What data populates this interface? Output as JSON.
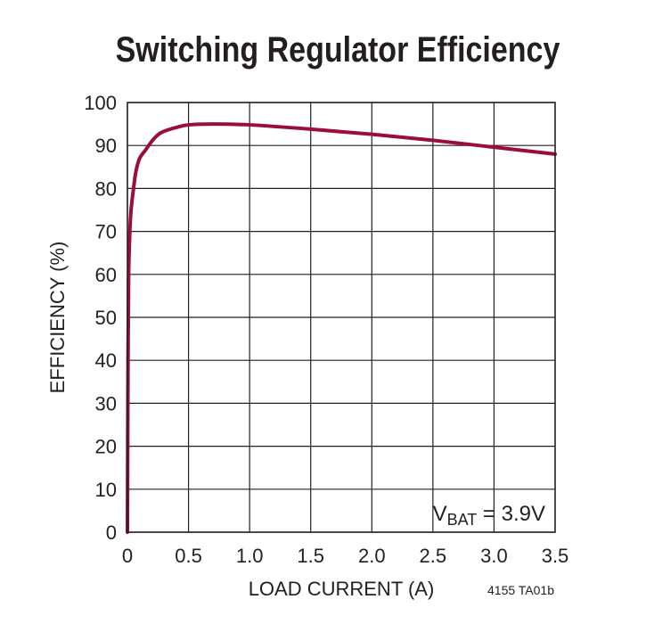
{
  "chart_data": {
    "type": "line",
    "title": "Switching Regulator Efficiency",
    "xlabel": "LOAD CURRENT (A)",
    "ylabel": "EFFICIENCY (%)",
    "xlim": [
      0,
      3.5
    ],
    "ylim": [
      0,
      100
    ],
    "x_ticks": [
      "0",
      "0.5",
      "1.0",
      "1.5",
      "2.0",
      "2.5",
      "3.0",
      "3.5"
    ],
    "y_ticks": [
      "0",
      "10",
      "20",
      "30",
      "40",
      "50",
      "60",
      "70",
      "80",
      "90",
      "100"
    ],
    "grid": true,
    "annotation": {
      "prefix": "V",
      "subscript": "BAT",
      "suffix": " = 3.9V"
    },
    "figure_code": "4155 TA01b",
    "line_color": "#9b0e3a",
    "series": [
      {
        "x": [
          0,
          0.005,
          0.01,
          0.02,
          0.03,
          0.05,
          0.07,
          0.1,
          0.15,
          0.2,
          0.25,
          0.3,
          0.4,
          0.5,
          0.7,
          1.0,
          1.5,
          2.0,
          2.5,
          3.0,
          3.5
        ],
        "y": [
          0,
          40,
          60,
          70,
          75,
          80,
          84,
          87,
          89,
          91,
          92.5,
          93.3,
          94.2,
          94.8,
          95,
          94.8,
          93.8,
          92.6,
          91.2,
          89.6,
          88
        ]
      }
    ]
  }
}
